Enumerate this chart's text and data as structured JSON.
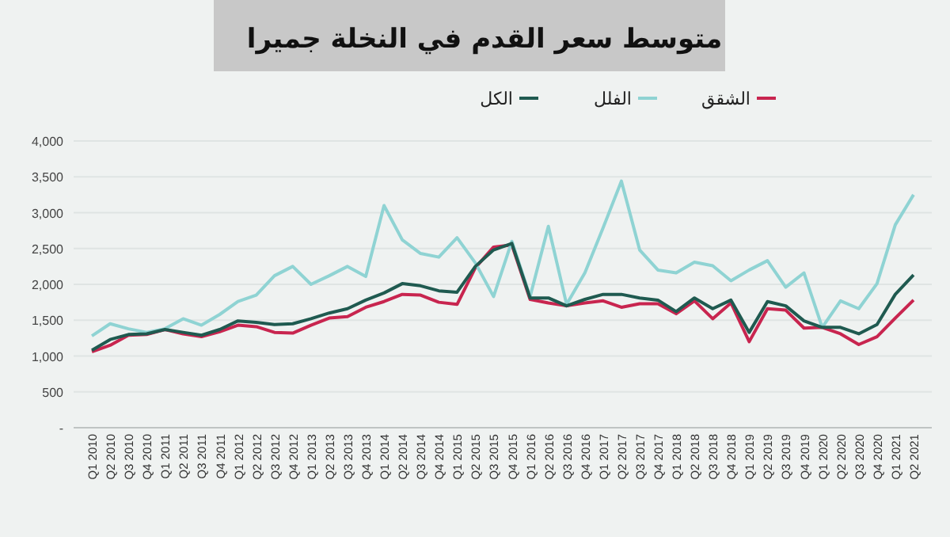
{
  "chart_data": {
    "type": "line",
    "title": "متوسط سعر القدم في النخلة جميرا",
    "categories": [
      "Q1 2010",
      "Q2 2010",
      "Q3 2010",
      "Q4 2010",
      "Q1 2011",
      "Q2 2011",
      "Q3 2011",
      "Q4 2011",
      "Q1 2012",
      "Q2 2012",
      "Q3 2012",
      "Q4 2012",
      "Q1 2013",
      "Q2 2013",
      "Q3 2013",
      "Q4 2013",
      "Q1 2014",
      "Q2 2014",
      "Q3 2014",
      "Q4 2014",
      "Q1 2015",
      "Q2 2015",
      "Q3 2015",
      "Q4 2015",
      "Q1 2016",
      "Q2 2016",
      "Q3 2016",
      "Q4 2016",
      "Q1 2017",
      "Q2 2017",
      "Q3 2017",
      "Q4 2017",
      "Q1 2018",
      "Q2 2018",
      "Q3 2018",
      "Q4 2018",
      "Q1 2019",
      "Q2 2019",
      "Q3 2019",
      "Q4 2019",
      "Q1 2020",
      "Q2 2020",
      "Q3 2020",
      "Q4 2020",
      "Q1 2021",
      "Q2 2021"
    ],
    "series": [
      {
        "name": "الشقق",
        "color": "#c8254f",
        "values": [
          1060,
          1150,
          1290,
          1300,
          1370,
          1310,
          1270,
          1340,
          1430,
          1410,
          1330,
          1320,
          1430,
          1530,
          1550,
          1680,
          1760,
          1860,
          1850,
          1750,
          1720,
          2230,
          2520,
          2550,
          1790,
          1740,
          1700,
          1740,
          1770,
          1680,
          1730,
          1730,
          1590,
          1770,
          1520,
          1740,
          1200,
          1660,
          1640,
          1390,
          1400,
          1310,
          1160,
          1270,
          1530,
          1780
        ]
      },
      {
        "name": "الفلل",
        "color": "#8fd3d3",
        "values": [
          1280,
          1450,
          1380,
          1330,
          1380,
          1520,
          1430,
          1580,
          1760,
          1850,
          2120,
          2250,
          2000,
          2120,
          2250,
          2110,
          3100,
          2620,
          2430,
          2380,
          2650,
          2300,
          1830,
          2600,
          1830,
          2810,
          1720,
          2160,
          2790,
          3440,
          2480,
          2200,
          2160,
          2310,
          2260,
          2050,
          2200,
          2330,
          1960,
          2160,
          1400,
          1770,
          1660,
          2010,
          2830,
          3250
        ]
      },
      {
        "name": "الكل",
        "color": "#1f5a50",
        "values": [
          1080,
          1230,
          1300,
          1310,
          1370,
          1330,
          1290,
          1370,
          1490,
          1470,
          1440,
          1450,
          1520,
          1600,
          1660,
          1780,
          1880,
          2010,
          1980,
          1910,
          1890,
          2250,
          2480,
          2570,
          1810,
          1810,
          1700,
          1790,
          1860,
          1860,
          1810,
          1780,
          1620,
          1810,
          1660,
          1780,
          1330,
          1760,
          1700,
          1490,
          1400,
          1400,
          1310,
          1440,
          1860,
          2130
        ]
      }
    ],
    "ylim": [
      0,
      4000
    ],
    "yticks": [
      {
        "value": 0,
        "label": "-"
      },
      {
        "value": 500,
        "label": "500"
      },
      {
        "value": 1000,
        "label": "1,000"
      },
      {
        "value": 1500,
        "label": "1,500"
      },
      {
        "value": 2000,
        "label": "2,000"
      },
      {
        "value": 2500,
        "label": "2,500"
      },
      {
        "value": 3000,
        "label": "3,000"
      },
      {
        "value": 3500,
        "label": "3,500"
      },
      {
        "value": 4000,
        "label": "4,000"
      }
    ],
    "grid": "y",
    "legend": "top",
    "marker": "none",
    "line_style": "solid"
  }
}
